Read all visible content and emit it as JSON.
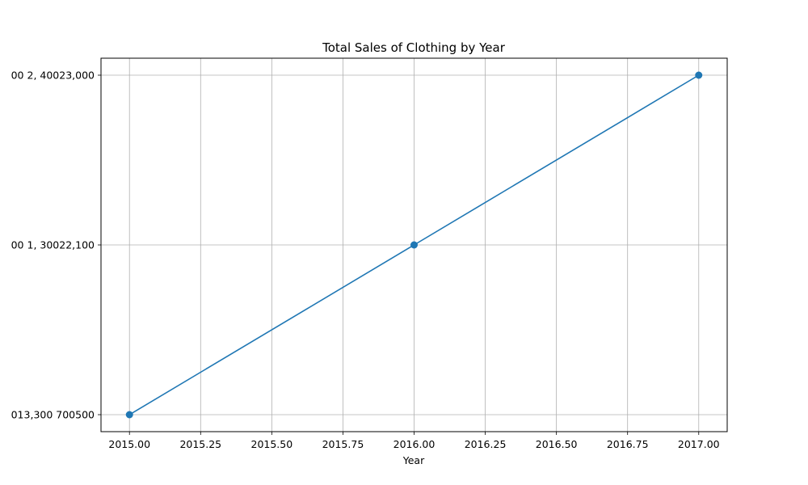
{
  "chart_data": {
    "type": "line",
    "title": "Total Sales of Clothing by Year",
    "xlabel": "Year",
    "ylabel": "",
    "x": [
      2015,
      2016,
      2017
    ],
    "series": [
      {
        "values": [
          0,
          1,
          2
        ],
        "color": "#1f77b4",
        "marker": "circle"
      }
    ],
    "xlim": [
      2014.9,
      2017.1
    ],
    "ylim": [
      -0.1,
      2.1
    ],
    "x_ticks": [
      "2015.00",
      "2015.25",
      "2015.50",
      "2015.75",
      "2016.00",
      "2016.25",
      "2016.50",
      "2016.75",
      "2017.00"
    ],
    "x_tick_values": [
      2015,
      2015.25,
      2015.5,
      2015.75,
      2016,
      2016.25,
      2016.5,
      2016.75,
      2017
    ],
    "y_ticks": [
      "013,300  700500",
      "00  1, 30022,100",
      "00  2, 40023,000"
    ],
    "y_tick_values": [
      0,
      1,
      2
    ],
    "grid": true,
    "colors": {
      "line": "#1f77b4",
      "grid": "#b0b0b0",
      "axes": "#000000"
    }
  }
}
